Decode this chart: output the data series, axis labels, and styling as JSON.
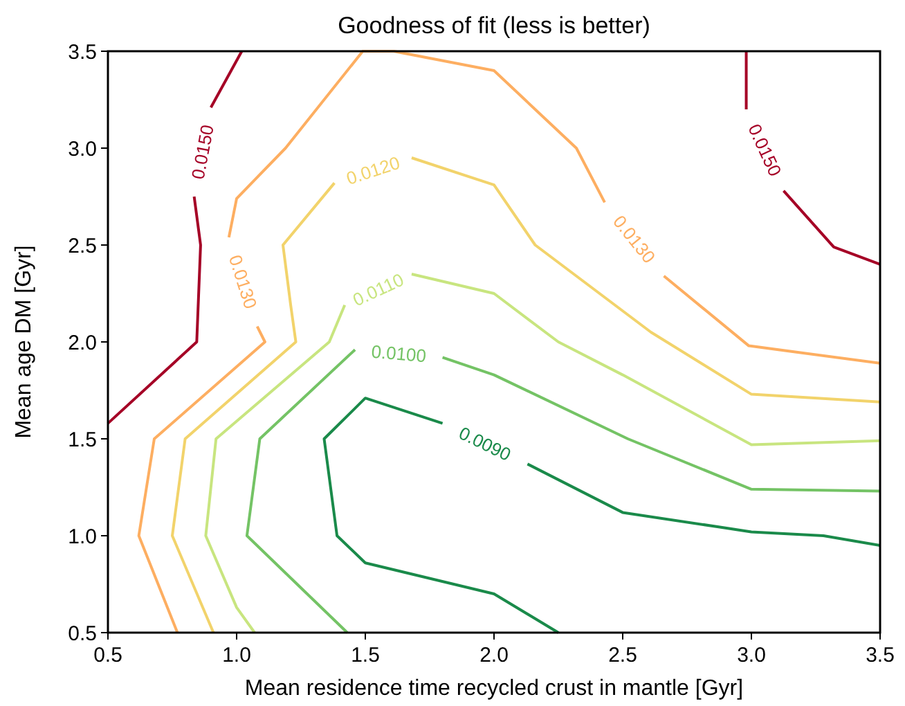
{
  "chart_data": {
    "type": "line",
    "title": "Goodness of fit (less is better)",
    "xlabel": "Mean residence time recycled crust in mantle [Gyr]",
    "ylabel": "Mean age DM [Gyr]",
    "xlim": [
      0.5,
      3.5
    ],
    "ylim": [
      0.5,
      3.5
    ],
    "xticks": [
      0.5,
      {
        "value": 1,
        "label": "1.0"
      },
      1.5,
      {
        "value": 2,
        "label": "2.0"
      },
      2.5,
      {
        "value": 3,
        "label": "3.0"
      },
      3.5
    ],
    "yticks": [
      0.5,
      {
        "value": 1,
        "label": "1.0"
      },
      1.5,
      {
        "value": 2,
        "label": "2.0"
      },
      2.5,
      {
        "value": 3,
        "label": "3.0"
      },
      3.5
    ],
    "grid": false,
    "marker": "none",
    "line_style": "solid",
    "series": [
      {
        "name": "0.0150",
        "color": "#a50026",
        "x": [
          0.5,
          0.845,
          0.86,
          0.835,
          null,
          0.9,
          1.02
        ],
        "values": [
          1.58,
          2.0,
          2.5,
          2.75,
          null,
          3.21,
          3.5
        ]
      },
      {
        "name": "0.0150",
        "color": "#a50026",
        "x": [
          2.98,
          2.98,
          null,
          3.125,
          3.32,
          3.5
        ],
        "values": [
          3.5,
          3.2,
          null,
          2.78,
          2.49,
          2.4
        ]
      },
      {
        "name": "0.0130",
        "color": "#fdae61",
        "x": [
          0.77,
          0.62,
          0.68,
          1.11,
          1.08,
          null,
          0.97,
          1.0,
          1.19,
          1.49,
          1.61,
          2.0,
          2.32,
          2.43,
          null,
          2.66,
          2.99,
          3.5
        ],
        "values": [
          0.5,
          1.0,
          1.5,
          2.0,
          2.08,
          null,
          2.54,
          2.74,
          3.0,
          3.5,
          3.5,
          3.4,
          3.0,
          2.72,
          null,
          2.34,
          1.98,
          1.89
        ]
      },
      {
        "name": "0.0120",
        "color": "#f2d36b",
        "x": [
          0.91,
          0.75,
          0.8,
          1.23,
          1.21,
          1.18,
          1.38,
          null,
          1.68,
          2.0,
          2.16,
          2.61,
          3.0,
          3.5
        ],
        "values": [
          0.5,
          1.0,
          1.5,
          2.0,
          2.19,
          2.5,
          2.82,
          null,
          2.95,
          2.81,
          2.5,
          2.05,
          1.73,
          1.69
        ]
      },
      {
        "name": "0.0110",
        "color": "#c8e57f",
        "x": [
          1.07,
          1.0,
          0.88,
          0.92,
          1.36,
          1.42,
          null,
          1.68,
          2.0,
          2.25,
          2.5,
          3.0,
          3.5
        ],
        "values": [
          0.5,
          0.63,
          1.0,
          1.5,
          2.0,
          2.19,
          null,
          2.35,
          2.25,
          2.0,
          1.83,
          1.47,
          1.49
        ]
      },
      {
        "name": "0.0100",
        "color": "#74c365",
        "x": [
          1.43,
          1.04,
          1.09,
          1.46,
          null,
          1.8,
          2.0,
          2.52,
          3.0,
          3.5
        ],
        "values": [
          0.5,
          1.0,
          1.5,
          1.96,
          null,
          1.92,
          1.83,
          1.5,
          1.24,
          1.23
        ]
      },
      {
        "name": "0.0090",
        "color": "#1a8a4a",
        "x": [
          3.5,
          3.28,
          3.0,
          2.5,
          2.13,
          null,
          1.8,
          1.5,
          1.34,
          1.39,
          1.5,
          2.0,
          2.25
        ],
        "values": [
          0.95,
          1.0,
          1.02,
          1.12,
          1.37,
          null,
          1.58,
          1.71,
          1.5,
          1.0,
          0.86,
          0.7,
          0.5
        ]
      }
    ]
  }
}
